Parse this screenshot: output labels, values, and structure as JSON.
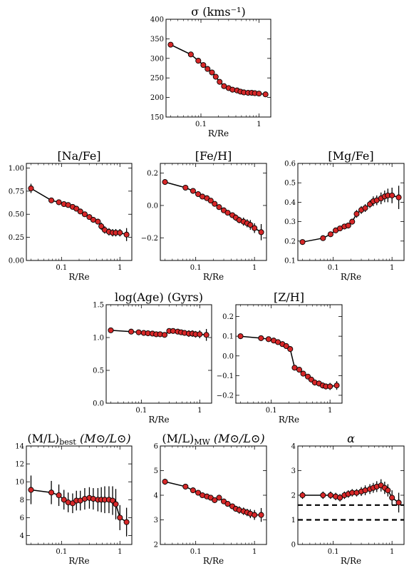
{
  "chart_data": [
    {
      "id": "sigma",
      "type": "line",
      "title": "σ (kms⁻¹)",
      "xlabel": "R/Re",
      "xscale": "log",
      "xlim": [
        0.025,
        1.6
      ],
      "ylim": [
        150,
        400
      ],
      "yticks": [
        150,
        200,
        250,
        300,
        350,
        400
      ],
      "ytick_labels": [
        "150",
        "200",
        "250",
        "300",
        "350",
        "400"
      ],
      "x": [
        0.03,
        0.067,
        0.09,
        0.11,
        0.13,
        0.155,
        0.18,
        0.21,
        0.25,
        0.3,
        0.35,
        0.42,
        0.48,
        0.55,
        0.65,
        0.75,
        0.85,
        1.0,
        1.3
      ],
      "y": [
        335,
        310,
        294,
        283,
        273,
        264,
        253,
        240,
        229,
        224,
        220,
        218,
        215,
        213,
        212,
        212,
        211,
        210,
        208
      ],
      "yerr": [
        2,
        2,
        2,
        2,
        2,
        2,
        2,
        2,
        2,
        2,
        2,
        2,
        2,
        2,
        2,
        2,
        2,
        2,
        3
      ]
    },
    {
      "id": "nafe",
      "type": "line",
      "title": "[Na/Fe]",
      "xlabel": "R/Re",
      "xscale": "log",
      "xlim": [
        0.025,
        1.6
      ],
      "ylim": [
        0,
        1.05
      ],
      "yticks": [
        0,
        0.25,
        0.5,
        0.75,
        1.0
      ],
      "ytick_labels": [
        "0.00",
        "0.25",
        "0.50",
        "0.75",
        "1.00"
      ],
      "x": [
        0.03,
        0.067,
        0.09,
        0.11,
        0.13,
        0.155,
        0.18,
        0.21,
        0.25,
        0.3,
        0.35,
        0.42,
        0.48,
        0.55,
        0.65,
        0.75,
        0.85,
        1.0,
        1.3
      ],
      "y": [
        0.78,
        0.65,
        0.63,
        0.61,
        0.6,
        0.58,
        0.56,
        0.53,
        0.5,
        0.47,
        0.44,
        0.42,
        0.37,
        0.33,
        0.31,
        0.3,
        0.3,
        0.3,
        0.28
      ],
      "yerr": [
        0.05,
        0.02,
        0.02,
        0.02,
        0.02,
        0.02,
        0.02,
        0.02,
        0.02,
        0.03,
        0.03,
        0.03,
        0.04,
        0.04,
        0.04,
        0.04,
        0.04,
        0.04,
        0.07
      ]
    },
    {
      "id": "feh",
      "type": "line",
      "title": "[Fe/H]",
      "xlabel": "R/Re",
      "xscale": "log",
      "xlim": [
        0.025,
        1.6
      ],
      "ylim": [
        -0.34,
        0.26
      ],
      "yticks": [
        -0.2,
        0.0,
        0.2
      ],
      "ytick_labels": [
        "−0.2",
        "0.0",
        "0.2"
      ],
      "x": [
        0.03,
        0.067,
        0.09,
        0.11,
        0.13,
        0.155,
        0.18,
        0.21,
        0.25,
        0.3,
        0.35,
        0.42,
        0.48,
        0.55,
        0.65,
        0.75,
        0.85,
        1.0,
        1.3
      ],
      "y": [
        0.145,
        0.11,
        0.09,
        0.07,
        0.055,
        0.045,
        0.03,
        0.01,
        -0.01,
        -0.03,
        -0.045,
        -0.06,
        -0.075,
        -0.09,
        -0.1,
        -0.11,
        -0.12,
        -0.14,
        -0.165
      ],
      "yerr": [
        0.01,
        0.01,
        0.01,
        0.01,
        0.01,
        0.01,
        0.01,
        0.01,
        0.01,
        0.01,
        0.015,
        0.015,
        0.02,
        0.02,
        0.025,
        0.025,
        0.03,
        0.03,
        0.05
      ]
    },
    {
      "id": "mgfe",
      "type": "line",
      "title": "[Mg/Fe]",
      "xlabel": "R/Re",
      "xscale": "log",
      "xlim": [
        0.025,
        1.6
      ],
      "ylim": [
        0.1,
        0.6
      ],
      "yticks": [
        0.1,
        0.2,
        0.3,
        0.4,
        0.5,
        0.6
      ],
      "ytick_labels": [
        "0.1",
        "0.2",
        "0.3",
        "0.4",
        "0.5",
        "0.6"
      ],
      "x": [
        0.03,
        0.067,
        0.09,
        0.11,
        0.13,
        0.155,
        0.18,
        0.21,
        0.25,
        0.3,
        0.35,
        0.42,
        0.48,
        0.55,
        0.65,
        0.75,
        0.85,
        1.0,
        1.3
      ],
      "y": [
        0.195,
        0.215,
        0.235,
        0.255,
        0.265,
        0.275,
        0.28,
        0.3,
        0.34,
        0.36,
        0.37,
        0.39,
        0.405,
        0.41,
        0.42,
        0.43,
        0.435,
        0.435,
        0.425
      ],
      "yerr": [
        0.01,
        0.01,
        0.01,
        0.01,
        0.012,
        0.012,
        0.015,
        0.015,
        0.02,
        0.02,
        0.02,
        0.02,
        0.025,
        0.025,
        0.03,
        0.03,
        0.035,
        0.04,
        0.06
      ]
    },
    {
      "id": "age",
      "type": "line",
      "title": "log(Age) (Gyrs)",
      "xlabel": "R/Re",
      "xscale": "log",
      "xlim": [
        0.025,
        1.6
      ],
      "ylim": [
        0,
        1.5
      ],
      "yticks": [
        0,
        0.5,
        1.0,
        1.5
      ],
      "ytick_labels": [
        "0.0",
        "0.5",
        "1.0",
        "1.5"
      ],
      "x": [
        0.03,
        0.067,
        0.09,
        0.11,
        0.13,
        0.155,
        0.18,
        0.21,
        0.25,
        0.3,
        0.35,
        0.42,
        0.48,
        0.55,
        0.65,
        0.75,
        0.85,
        1.0,
        1.3
      ],
      "y": [
        1.11,
        1.09,
        1.08,
        1.07,
        1.065,
        1.06,
        1.05,
        1.05,
        1.04,
        1.1,
        1.1,
        1.09,
        1.08,
        1.07,
        1.06,
        1.06,
        1.05,
        1.05,
        1.04
      ],
      "yerr": [
        0.02,
        0.02,
        0.02,
        0.02,
        0.02,
        0.02,
        0.02,
        0.02,
        0.02,
        0.03,
        0.03,
        0.03,
        0.04,
        0.04,
        0.05,
        0.05,
        0.05,
        0.06,
        0.09
      ]
    },
    {
      "id": "zh",
      "type": "line",
      "title": "[Z/H]",
      "xlabel": "R/Re",
      "xscale": "log",
      "xlim": [
        0.025,
        1.6
      ],
      "ylim": [
        -0.24,
        0.26
      ],
      "yticks": [
        -0.2,
        -0.1,
        0.0,
        0.1,
        0.2
      ],
      "ytick_labels": [
        "−0.2",
        "−0.1",
        "0.0",
        "0.1",
        "0.2"
      ],
      "x": [
        0.03,
        0.067,
        0.09,
        0.11,
        0.13,
        0.155,
        0.18,
        0.21,
        0.25,
        0.3,
        0.35,
        0.42,
        0.48,
        0.55,
        0.65,
        0.75,
        0.85,
        1.0,
        1.3
      ],
      "y": [
        0.1,
        0.09,
        0.085,
        0.078,
        0.07,
        0.06,
        0.05,
        0.035,
        -0.06,
        -0.07,
        -0.09,
        -0.105,
        -0.12,
        -0.135,
        -0.14,
        -0.15,
        -0.155,
        -0.155,
        -0.15
      ],
      "yerr": [
        0.005,
        0.005,
        0.005,
        0.005,
        0.005,
        0.005,
        0.005,
        0.005,
        0.01,
        0.01,
        0.01,
        0.012,
        0.014,
        0.015,
        0.015,
        0.015,
        0.015,
        0.018,
        0.022
      ]
    },
    {
      "id": "mlbest",
      "type": "line",
      "title": "(M/L)",
      "title_sub": "best",
      "title_unit": "(M⊙/L⊙)",
      "xlabel": "R/Re",
      "xscale": "log",
      "xlim": [
        0.025,
        1.6
      ],
      "ylim": [
        3,
        14
      ],
      "yticks": [
        4,
        6,
        8,
        10,
        12,
        14
      ],
      "ytick_labels": [
        "4",
        "6",
        "8",
        "10",
        "12",
        "14"
      ],
      "x": [
        0.03,
        0.067,
        0.09,
        0.11,
        0.13,
        0.155,
        0.18,
        0.21,
        0.25,
        0.3,
        0.35,
        0.42,
        0.48,
        0.55,
        0.65,
        0.75,
        0.85,
        1.0,
        1.3
      ],
      "y": [
        9.1,
        8.8,
        8.5,
        8.0,
        7.7,
        7.6,
        7.9,
        7.9,
        8.1,
        8.2,
        8.1,
        8.0,
        8.0,
        8.0,
        8.0,
        7.9,
        7.5,
        6.0,
        5.5
      ],
      "yerr": [
        1.6,
        1.3,
        1.2,
        1.1,
        1.1,
        1.1,
        1.1,
        1.1,
        1.2,
        1.2,
        1.2,
        1.3,
        1.4,
        1.5,
        1.5,
        1.6,
        1.7,
        1.4,
        1.6
      ]
    },
    {
      "id": "mlmw",
      "type": "line",
      "title": "(M/L)",
      "title_sub": "MW",
      "title_unit": "(M⊙/L⊙)",
      "xlabel": "R/Re",
      "xscale": "log",
      "xlim": [
        0.025,
        1.6
      ],
      "ylim": [
        2,
        6
      ],
      "yticks": [
        2,
        3,
        4,
        5,
        6
      ],
      "ytick_labels": [
        "2",
        "3",
        "4",
        "5",
        "6"
      ],
      "x": [
        0.03,
        0.067,
        0.09,
        0.11,
        0.13,
        0.155,
        0.18,
        0.21,
        0.25,
        0.3,
        0.35,
        0.42,
        0.48,
        0.55,
        0.65,
        0.75,
        0.85,
        1.0,
        1.3
      ],
      "y": [
        4.55,
        4.35,
        4.2,
        4.1,
        4.0,
        3.95,
        3.9,
        3.8,
        3.9,
        3.75,
        3.65,
        3.55,
        3.45,
        3.4,
        3.35,
        3.3,
        3.25,
        3.2,
        3.2
      ],
      "yerr": [
        0.12,
        0.1,
        0.08,
        0.08,
        0.08,
        0.08,
        0.08,
        0.08,
        0.08,
        0.08,
        0.1,
        0.1,
        0.12,
        0.15,
        0.15,
        0.15,
        0.18,
        0.2,
        0.28
      ]
    },
    {
      "id": "alpha",
      "type": "line",
      "title": "α",
      "xlabel": "R/Re",
      "xscale": "log",
      "xlim": [
        0.025,
        1.6
      ],
      "ylim": [
        0,
        4
      ],
      "yticks": [
        0,
        1,
        2,
        3,
        4
      ],
      "ytick_labels": [
        "0",
        "1",
        "2",
        "3",
        "4"
      ],
      "x": [
        0.03,
        0.067,
        0.09,
        0.11,
        0.13,
        0.155,
        0.18,
        0.21,
        0.25,
        0.3,
        0.35,
        0.42,
        0.48,
        0.55,
        0.65,
        0.75,
        0.85,
        1.0,
        1.3
      ],
      "y": [
        2.0,
        2.0,
        2.0,
        1.95,
        1.9,
        2.0,
        2.05,
        2.1,
        2.1,
        2.15,
        2.2,
        2.25,
        2.3,
        2.35,
        2.4,
        2.3,
        2.2,
        1.9,
        1.7
      ],
      "yerr": [
        0.15,
        0.15,
        0.15,
        0.15,
        0.15,
        0.15,
        0.15,
        0.15,
        0.15,
        0.18,
        0.2,
        0.2,
        0.2,
        0.22,
        0.25,
        0.25,
        0.25,
        0.3,
        0.4
      ],
      "hlines": [
        1.6,
        1.0
      ]
    }
  ]
}
